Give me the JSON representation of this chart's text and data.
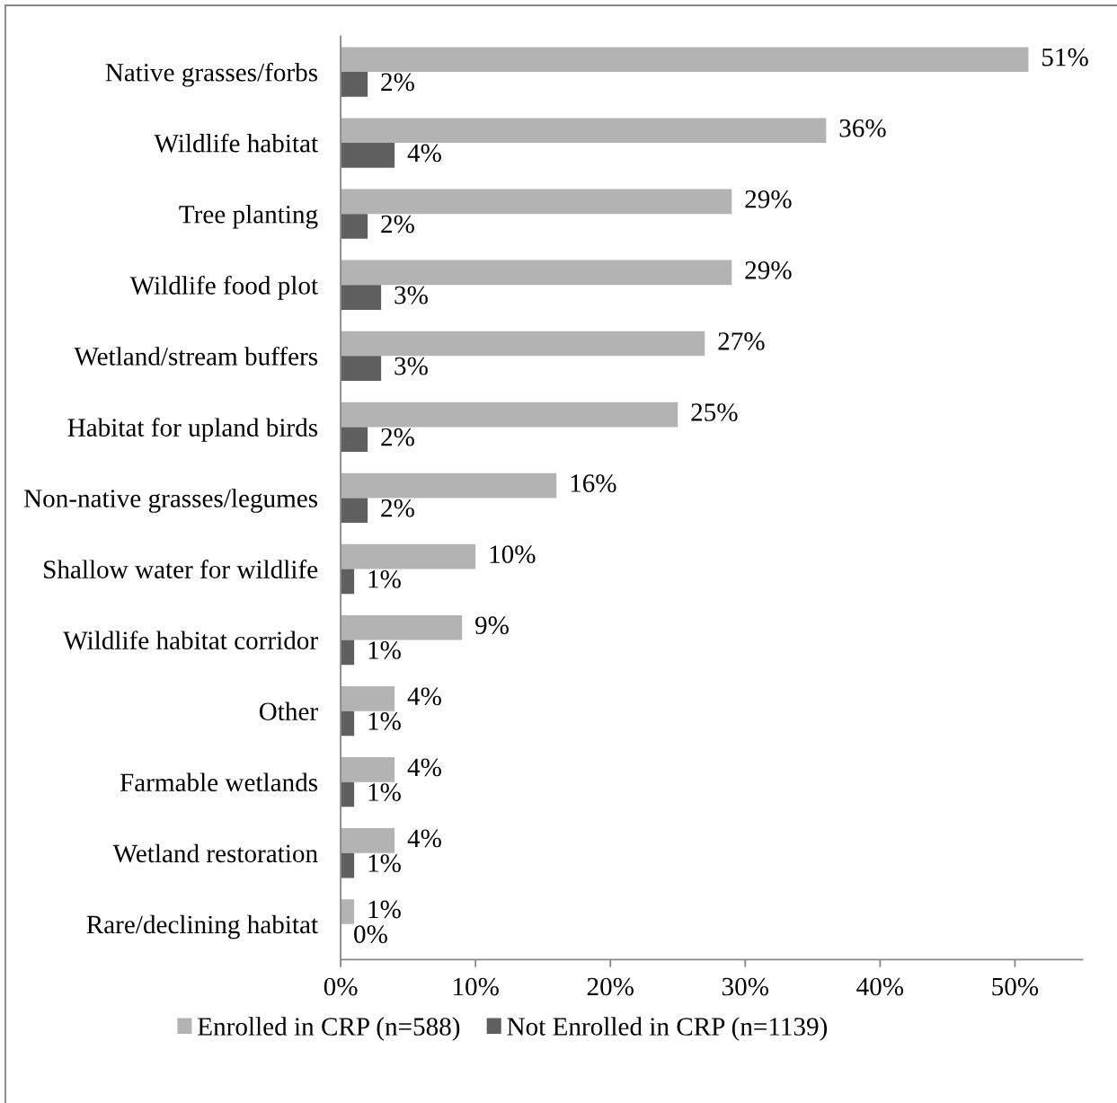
{
  "chart_data": {
    "type": "bar",
    "orientation": "horizontal",
    "categories": [
      "Native grasses/forbs",
      "Wildlife habitat",
      "Tree planting",
      "Wildlife food plot",
      "Wetland/stream buffers",
      "Habitat for upland birds",
      "Non-native grasses/legumes",
      "Shallow water for wildlife",
      "Wildlife habitat corridor",
      "Other",
      "Farmable wetlands",
      "Wetland restoration",
      "Rare/declining habitat"
    ],
    "series": [
      {
        "name": "Enrolled in CRP (n=588)",
        "color": "#b3b3b3",
        "values": [
          51,
          36,
          29,
          29,
          27,
          25,
          16,
          10,
          9,
          4,
          4,
          4,
          1
        ],
        "value_labels": [
          "51%",
          "36%",
          "29%",
          "29%",
          "27%",
          "25%",
          "16%",
          "10%",
          "9%",
          "4%",
          "4%",
          "4%",
          "1%"
        ]
      },
      {
        "name": "Not Enrolled in CRP (n=1139)",
        "color": "#5f5f5f",
        "values": [
          2,
          4,
          2,
          3,
          3,
          2,
          2,
          1,
          1,
          1,
          1,
          1,
          0
        ],
        "value_labels": [
          "2%",
          "4%",
          "2%",
          "3%",
          "3%",
          "2%",
          "2%",
          "1%",
          "1%",
          "1%",
          "1%",
          "1%",
          "0%"
        ]
      }
    ],
    "xlim": [
      0,
      55
    ],
    "xticks": [
      {
        "value": 0,
        "label": "0%"
      },
      {
        "value": 10,
        "label": "10%"
      },
      {
        "value": 20,
        "label": "20%"
      },
      {
        "value": 30,
        "label": "30%"
      },
      {
        "value": 40,
        "label": "40%"
      },
      {
        "value": 50,
        "label": "50%"
      }
    ],
    "grid": false,
    "legend": "bottom"
  }
}
